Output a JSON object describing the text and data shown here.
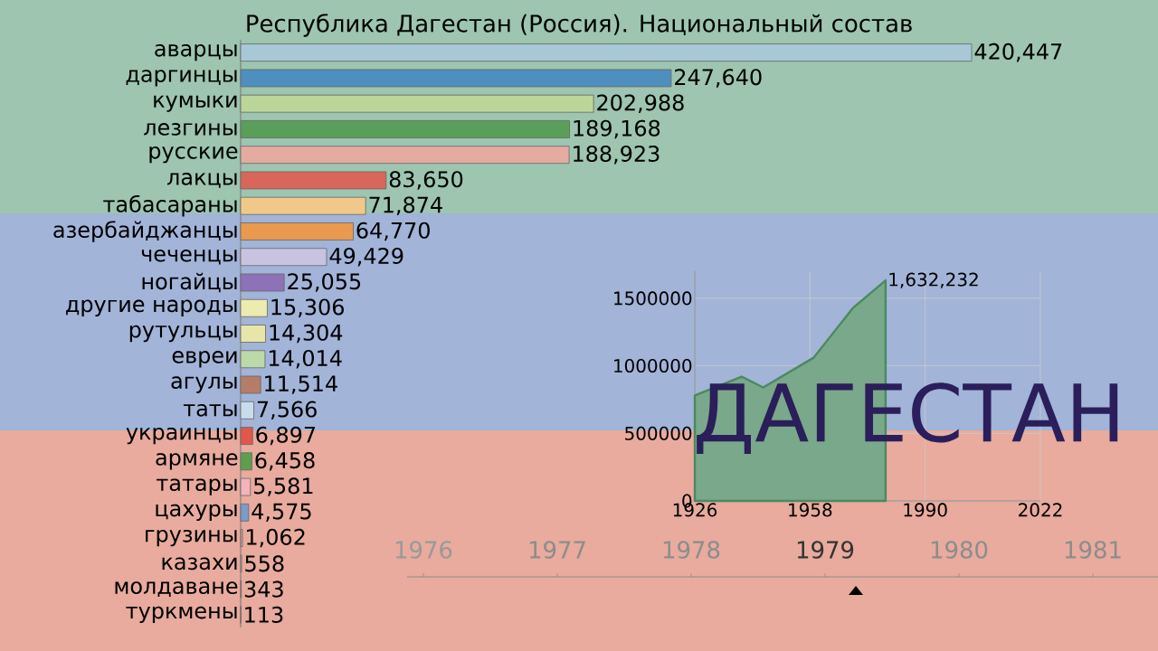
{
  "chart_data": [
    {
      "type": "bar",
      "orientation": "horizontal",
      "title": "Республика Дагестан (Россия). Национальный состав",
      "categories": [
        "аварцы",
        "даргинцы",
        "кумыки",
        "лезгины",
        "русские",
        "лакцы",
        "табасараны",
        "азербайджанцы",
        "чеченцы",
        "ногайцы",
        "другие народы",
        "рутульцы",
        "евреи",
        "агулы",
        "таты",
        "украинцы",
        "армяне",
        "татары",
        "цахуры",
        "грузины",
        "казахи",
        "молдаване",
        "туркмены"
      ],
      "values": [
        420447,
        247640,
        202988,
        189168,
        188923,
        83650,
        71874,
        64770,
        49429,
        25055,
        15306,
        14304,
        14014,
        11514,
        7566,
        6897,
        6458,
        5581,
        4575,
        1062,
        558,
        343,
        113
      ],
      "value_labels": [
        "420,447",
        "247,640",
        "202,988",
        "189,168",
        "188,923",
        "83,650",
        "71,874",
        "64,770",
        "49,429",
        "25,055",
        "15,306",
        "14,304",
        "14,014",
        "11,514",
        "7,566",
        "6,897",
        "6,458",
        "5,581",
        "4,575",
        "1,062",
        "558",
        "343",
        "113"
      ],
      "colors": [
        "#a9c8d6",
        "#4f8fbf",
        "#bcd69a",
        "#5a9e5a",
        "#e4aba0",
        "#d9665a",
        "#f0c98a",
        "#e99a4e",
        "#c7c3e0",
        "#8e72b8",
        "#ecebb0",
        "#e6e6a8",
        "#bcd9a8",
        "#b57d68",
        "#c8dcec",
        "#e0584d",
        "#5e9e4e",
        "#f2b5b8",
        "#7a9cc8",
        "#d0a0a0",
        "#c0c0c0",
        "#c0c0c0",
        "#c0c0c0"
      ],
      "annotations": [
        "1976",
        "1977",
        "1978",
        "1979",
        "1980",
        "1981"
      ]
    },
    {
      "type": "area",
      "x": [
        1926,
        1939,
        1945,
        1959,
        1970,
        1979
      ],
      "values": [
        780000,
        920000,
        840000,
        1060000,
        1430000,
        1632232
      ],
      "color": "#4a8a5e",
      "xlim": [
        1926,
        2022
      ],
      "ylim": [
        0,
        1700000
      ],
      "xticks": [
        1926,
        1958,
        1990,
        2022
      ],
      "yticks": [
        0,
        500000,
        1000000,
        1500000
      ],
      "grid": true,
      "annotations": [
        {
          "text": "1,632,232",
          "x": 1979,
          "y": 1632232
        },
        "ДАГЕСТАН"
      ]
    }
  ]
}
